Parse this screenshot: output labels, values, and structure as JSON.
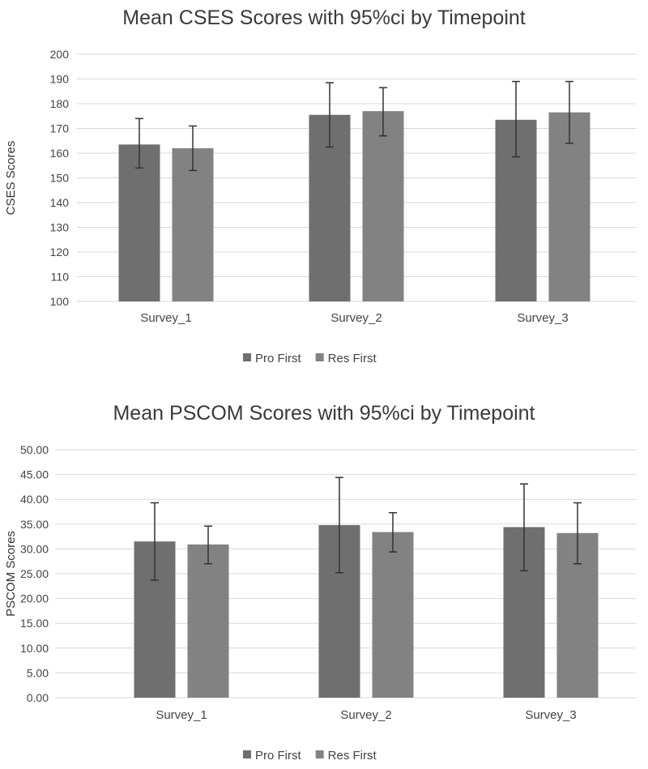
{
  "chart_data": [
    {
      "type": "bar",
      "title": "Mean CSES Scores with 95%ci by Timepoint",
      "xlabel": "",
      "ylabel": "CSES Scores",
      "ylim": [
        100,
        200
      ],
      "ystep": 10,
      "ydecimals": 0,
      "grid": true,
      "legend": "bottom",
      "categories": [
        "Survey_1",
        "Survey_2",
        "Survey_3"
      ],
      "series": [
        {
          "name": "Pro First",
          "color": "#6f6f6f",
          "values": [
            163.5,
            175.5,
            173.5
          ],
          "ci_low": [
            154,
            162.5,
            158.5
          ],
          "ci_high": [
            174,
            188.5,
            189
          ]
        },
        {
          "name": "Res First",
          "color": "#828282",
          "values": [
            162,
            177,
            176.5
          ],
          "ci_low": [
            153,
            167,
            164
          ],
          "ci_high": [
            171,
            186.5,
            189
          ]
        }
      ]
    },
    {
      "type": "bar",
      "title": "Mean PSCOM Scores with 95%ci by Timepoint",
      "xlabel": "",
      "ylabel": "PSCOM Scores",
      "ylim": [
        0,
        50
      ],
      "ystep": 5,
      "ydecimals": 2,
      "grid": true,
      "legend": "bottom",
      "categories": [
        "Survey_1",
        "Survey_2",
        "Survey_3"
      ],
      "series": [
        {
          "name": "Pro First",
          "color": "#6f6f6f",
          "values": [
            31.5,
            34.8,
            34.4
          ],
          "ci_low": [
            23.7,
            25.2,
            25.6
          ],
          "ci_high": [
            39.3,
            44.4,
            43.1
          ]
        },
        {
          "name": "Res First",
          "color": "#828282",
          "values": [
            30.9,
            33.4,
            33.2
          ],
          "ci_low": [
            27.0,
            29.4,
            27.0
          ],
          "ci_high": [
            34.6,
            37.3,
            39.3
          ]
        }
      ]
    }
  ]
}
